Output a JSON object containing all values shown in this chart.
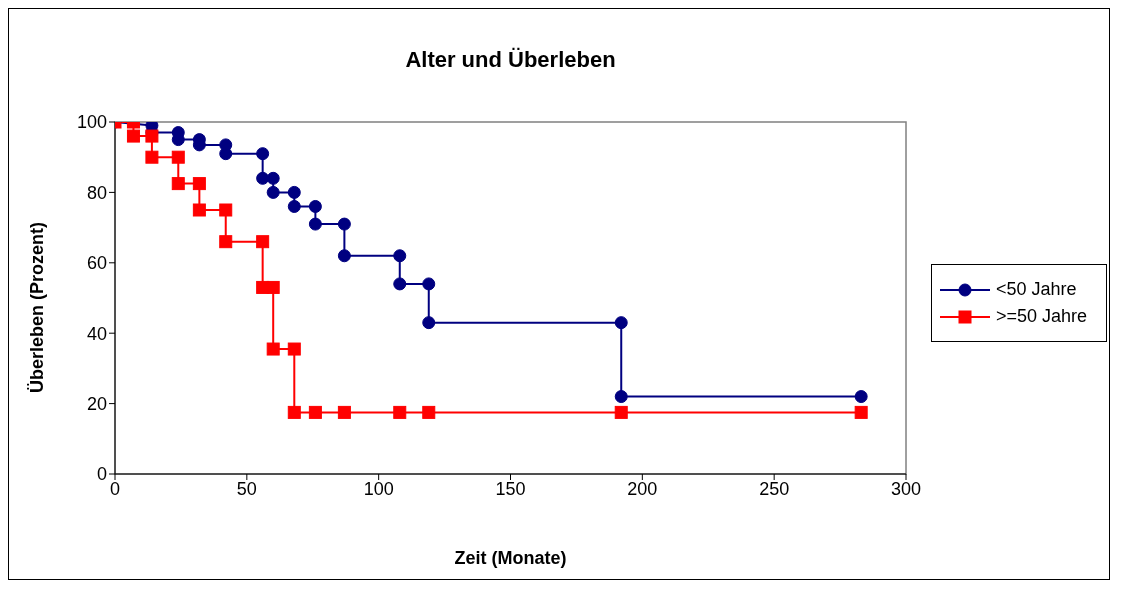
{
  "chart_data": {
    "type": "line",
    "title": "Alter und Überleben",
    "xlabel": "Zeit (Monate)",
    "ylabel": "Überleben (Prozent)",
    "xlim": [
      0,
      300
    ],
    "xticks": [
      0,
      50,
      100,
      150,
      200,
      250,
      300
    ],
    "ylim": [
      0,
      100
    ],
    "yticks": [
      0,
      20,
      40,
      60,
      80,
      100
    ],
    "grid": false,
    "legend": "right",
    "line_style": "solid",
    "series": [
      {
        "name": "<50 Jahre",
        "color": "#000080",
        "marker": "circle",
        "x": [
          0,
          14,
          14,
          24,
          24,
          32,
          32,
          42,
          42,
          56,
          56,
          60,
          60,
          68,
          68,
          76,
          76,
          87,
          87,
          108,
          108,
          119,
          119,
          192,
          192,
          283
        ],
        "values": [
          100,
          99,
          97,
          97,
          95,
          95,
          93.5,
          93.5,
          91,
          91,
          84,
          84,
          80,
          80,
          76,
          76,
          71,
          71,
          62,
          62,
          54,
          54,
          43,
          43,
          22,
          22
        ]
      },
      {
        "name": ">=50 Jahre",
        "color": "#ff0000",
        "marker": "square",
        "x": [
          0,
          7,
          7,
          14,
          14,
          24,
          24,
          32,
          32,
          42,
          42,
          56,
          56,
          60,
          60,
          68,
          68,
          76,
          87,
          108,
          119,
          192,
          283
        ],
        "values": [
          100,
          100,
          96,
          96,
          90,
          90,
          82.5,
          82.5,
          75,
          75,
          66,
          66,
          53,
          53,
          35.5,
          35.5,
          17.5,
          17.5,
          17.5,
          17.5,
          17.5,
          17.5,
          17.5
        ]
      }
    ]
  }
}
